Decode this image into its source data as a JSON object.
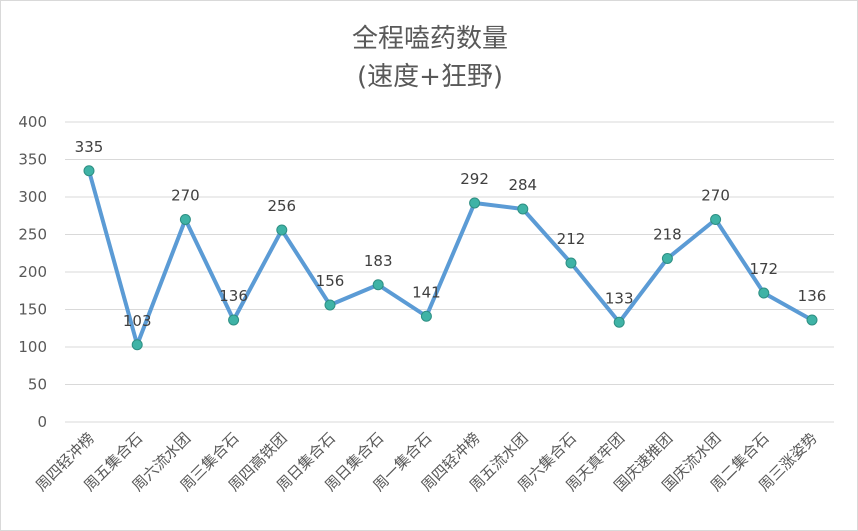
{
  "chart_data": {
    "type": "line",
    "title": "全程嗑药数量",
    "subtitle": "(速度+狂野)",
    "ylim": [
      0,
      400
    ],
    "yticks": [
      "0",
      "50",
      "100",
      "150",
      "200",
      "250",
      "300",
      "350",
      "400"
    ],
    "grid": true,
    "legend": "none",
    "line_color": "#5b9bd5",
    "marker_color": "#3fb3a6",
    "categories": [
      "周四轻冲榜",
      "周五集合石",
      "周六流水团",
      "周三集合石",
      "周四高铁团",
      "周日集合石",
      "周日集合石",
      "周一集合石",
      "周四轻冲榜",
      "周五流水团",
      "周六集合石",
      "周天真牢团",
      "国庆速推团",
      "国庆流水团",
      "周二集合石",
      "周三涨姿势"
    ],
    "values": [
      335,
      103,
      270,
      136,
      256,
      156,
      183,
      141,
      292,
      284,
      212,
      133,
      218,
      270,
      172,
      136
    ],
    "data_labels": [
      "335",
      "103",
      "270",
      "136",
      "256",
      "156",
      "183",
      "141",
      "292",
      "284",
      "212",
      "133",
      "218",
      "270",
      "172",
      "136"
    ]
  }
}
